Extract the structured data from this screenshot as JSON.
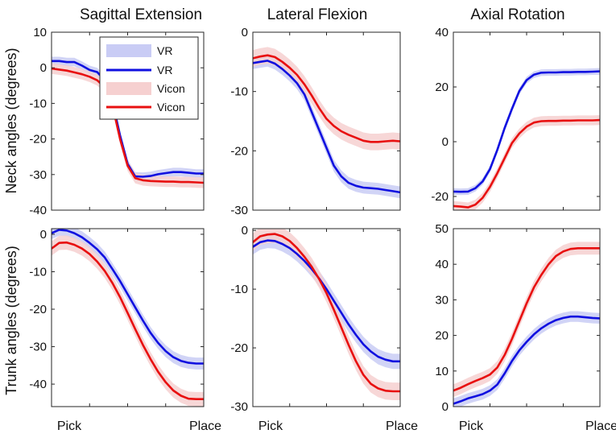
{
  "figure": {
    "col_titles": [
      "Sagittal Extension",
      "Lateral Flexion",
      "Axial Rotation"
    ],
    "row_labels": [
      "Neck angles (degrees)",
      "Trunk angles (degrees)"
    ],
    "x_tick_labels": [
      "Pick",
      "Place"
    ],
    "legend": [
      {
        "label": "VR",
        "kind": "band",
        "color": "#c9ccf5"
      },
      {
        "label": "VR",
        "kind": "line",
        "color": "#1010e0"
      },
      {
        "label": "Vicon",
        "kind": "band",
        "color": "#f6d0d0"
      },
      {
        "label": "Vicon",
        "kind": "line",
        "color": "#e81010"
      }
    ],
    "colors": {
      "vr_line": "#1010e0",
      "vr_band": "#c9ccf5",
      "vicon_line": "#e81010",
      "vicon_band": "#f6d0d0"
    }
  },
  "chart_data": [
    {
      "type": "line",
      "panel": "neck-sagittal",
      "title": "Sagittal Extension",
      "ylabel": "Neck angles (degrees)",
      "xlabel": "",
      "x": [
        0,
        5,
        10,
        15,
        20,
        25,
        30,
        35,
        40,
        45,
        50,
        55,
        60,
        65,
        70,
        75,
        80,
        85,
        90,
        95,
        100
      ],
      "x_ticks": [
        "Pick",
        "Place"
      ],
      "ylim": [
        -40,
        10
      ],
      "yticks": [
        -40,
        -30,
        -20,
        -10,
        0,
        10
      ],
      "legend_position": "top-right",
      "series": [
        {
          "name": "VR",
          "band_width": 1.2,
          "values": [
            1.9,
            1.9,
            1.6,
            1.6,
            0.6,
            -0.6,
            -1.2,
            -3.5,
            -9.5,
            -19,
            -27,
            -30.5,
            -30.6,
            -30.4,
            -29.9,
            -29.6,
            -29.3,
            -29.3,
            -29.5,
            -29.7,
            -29.7
          ]
        },
        {
          "name": "Vicon",
          "band_width": 1.5,
          "values": [
            -0.2,
            -0.5,
            -0.8,
            -1.3,
            -1.8,
            -2.5,
            -3.5,
            -5.5,
            -10.5,
            -20,
            -27.5,
            -31,
            -31.6,
            -31.8,
            -31.9,
            -32.0,
            -32.0,
            -32.1,
            -32.1,
            -32.2,
            -32.3
          ]
        }
      ]
    },
    {
      "type": "line",
      "panel": "neck-lateral",
      "title": "Lateral Flexion",
      "xlabel": "",
      "x": [
        0,
        5,
        10,
        15,
        20,
        25,
        30,
        35,
        40,
        45,
        50,
        55,
        60,
        65,
        70,
        75,
        80,
        85,
        90,
        95,
        100
      ],
      "x_ticks": [
        "Pick",
        "Place"
      ],
      "ylim": [
        -30,
        0
      ],
      "yticks": [
        -30,
        -20,
        -10,
        0
      ],
      "series": [
        {
          "name": "VR",
          "band_width": 1.0,
          "values": [
            -5.2,
            -5.0,
            -4.8,
            -5.3,
            -6.2,
            -7.3,
            -8.6,
            -10.5,
            -13.5,
            -16.5,
            -19.5,
            -22.5,
            -24.3,
            -25.4,
            -25.9,
            -26.2,
            -26.3,
            -26.4,
            -26.6,
            -26.8,
            -27.0
          ]
        },
        {
          "name": "Vicon",
          "band_width": 1.4,
          "values": [
            -4.4,
            -4.1,
            -3.9,
            -4.2,
            -5.0,
            -6.0,
            -7.2,
            -8.8,
            -10.7,
            -12.8,
            -14.6,
            -15.8,
            -16.7,
            -17.3,
            -17.8,
            -18.3,
            -18.5,
            -18.5,
            -18.4,
            -18.3,
            -18.4
          ]
        }
      ]
    },
    {
      "type": "line",
      "panel": "neck-axial",
      "title": "Axial Rotation",
      "xlabel": "",
      "x": [
        0,
        5,
        10,
        15,
        20,
        25,
        30,
        35,
        40,
        45,
        50,
        55,
        60,
        65,
        70,
        75,
        80,
        85,
        90,
        95,
        100
      ],
      "x_ticks": [
        "Pick",
        "Place"
      ],
      "ylim": [
        -25,
        40
      ],
      "yticks": [
        -20,
        0,
        20,
        40
      ],
      "series": [
        {
          "name": "VR",
          "band_width": 1.2,
          "values": [
            -18.2,
            -18.3,
            -18.2,
            -17.0,
            -14.5,
            -10.0,
            -3.0,
            5.0,
            12.0,
            18.5,
            22.5,
            24.5,
            25.2,
            25.3,
            25.3,
            25.4,
            25.4,
            25.5,
            25.5,
            25.6,
            25.7
          ]
        },
        {
          "name": "Vicon",
          "band_width": 1.8,
          "values": [
            -23.5,
            -23.7,
            -24.0,
            -23.0,
            -20.5,
            -16.5,
            -11.5,
            -6.0,
            -0.5,
            3.0,
            5.5,
            7.0,
            7.5,
            7.6,
            7.6,
            7.7,
            7.7,
            7.8,
            7.8,
            7.8,
            7.9
          ]
        }
      ]
    },
    {
      "type": "line",
      "panel": "trunk-sagittal",
      "title": "",
      "ylabel": "Trunk angles (degrees)",
      "xlabel": "",
      "x": [
        0,
        5,
        10,
        15,
        20,
        25,
        30,
        35,
        40,
        45,
        50,
        55,
        60,
        65,
        70,
        75,
        80,
        85,
        90,
        95,
        100
      ],
      "x_ticks": [
        "Pick",
        "Place"
      ],
      "ylim": [
        -46,
        1.5
      ],
      "yticks": [
        -40,
        -30,
        -20,
        -10,
        0
      ],
      "series": [
        {
          "name": "VR",
          "band_width": 1.6,
          "values": [
            0.3,
            1.2,
            1.0,
            0.3,
            -0.8,
            -2.3,
            -4.0,
            -6.2,
            -9.3,
            -12.5,
            -16.0,
            -19.5,
            -23.0,
            -26.3,
            -29.0,
            -31.2,
            -32.8,
            -33.8,
            -34.3,
            -34.5,
            -34.5
          ]
        },
        {
          "name": "Vicon",
          "band_width": 1.9,
          "values": [
            -3.8,
            -2.3,
            -2.2,
            -2.8,
            -3.8,
            -5.3,
            -7.3,
            -9.8,
            -13.0,
            -16.8,
            -21.0,
            -25.3,
            -29.5,
            -33.3,
            -36.7,
            -39.5,
            -41.7,
            -43.1,
            -43.9,
            -44.0,
            -44.0
          ]
        }
      ]
    },
    {
      "type": "line",
      "panel": "trunk-lateral",
      "title": "",
      "xlabel": "",
      "x": [
        0,
        5,
        10,
        15,
        20,
        25,
        30,
        35,
        40,
        45,
        50,
        55,
        60,
        65,
        70,
        75,
        80,
        85,
        90,
        95,
        100
      ],
      "x_ticks": [
        "Pick",
        "Place"
      ],
      "ylim": [
        -30,
        0.3
      ],
      "yticks": [
        -30,
        -20,
        -10,
        0
      ],
      "series": [
        {
          "name": "VR",
          "band_width": 1.3,
          "values": [
            -2.8,
            -2.0,
            -1.7,
            -1.8,
            -2.3,
            -3.0,
            -4.0,
            -5.2,
            -6.6,
            -8.2,
            -10.0,
            -12.0,
            -14.0,
            -16.0,
            -17.8,
            -19.4,
            -20.6,
            -21.5,
            -22.0,
            -22.3,
            -22.3
          ]
        },
        {
          "name": "Vicon",
          "band_width": 1.5,
          "values": [
            -2.0,
            -1.0,
            -0.7,
            -0.6,
            -1.0,
            -1.8,
            -3.0,
            -4.5,
            -6.2,
            -8.3,
            -10.7,
            -13.5,
            -16.5,
            -19.5,
            -22.3,
            -24.6,
            -26.1,
            -26.9,
            -27.3,
            -27.4,
            -27.4
          ]
        }
      ]
    },
    {
      "type": "line",
      "panel": "trunk-axial",
      "title": "",
      "xlabel": "",
      "x": [
        0,
        5,
        10,
        15,
        20,
        25,
        30,
        35,
        40,
        45,
        50,
        55,
        60,
        65,
        70,
        75,
        80,
        85,
        90,
        95,
        100
      ],
      "x_ticks": [
        "Pick",
        "Place"
      ],
      "ylim": [
        0,
        50
      ],
      "yticks": [
        0,
        10,
        20,
        30,
        40,
        50
      ],
      "series": [
        {
          "name": "VR",
          "band_width": 1.5,
          "values": [
            0.8,
            1.5,
            2.3,
            2.9,
            3.5,
            4.5,
            6.2,
            9.3,
            12.8,
            15.8,
            18.2,
            20.3,
            22.0,
            23.3,
            24.3,
            24.9,
            25.3,
            25.3,
            25.1,
            24.9,
            24.8
          ]
        },
        {
          "name": "Vicon",
          "band_width": 1.8,
          "values": [
            4.5,
            5.3,
            6.3,
            7.2,
            8.0,
            9.0,
            11.0,
            14.5,
            19.0,
            24.0,
            29.0,
            33.5,
            37.0,
            40.0,
            42.3,
            43.6,
            44.3,
            44.5,
            44.5,
            44.5,
            44.5
          ]
        }
      ]
    }
  ]
}
